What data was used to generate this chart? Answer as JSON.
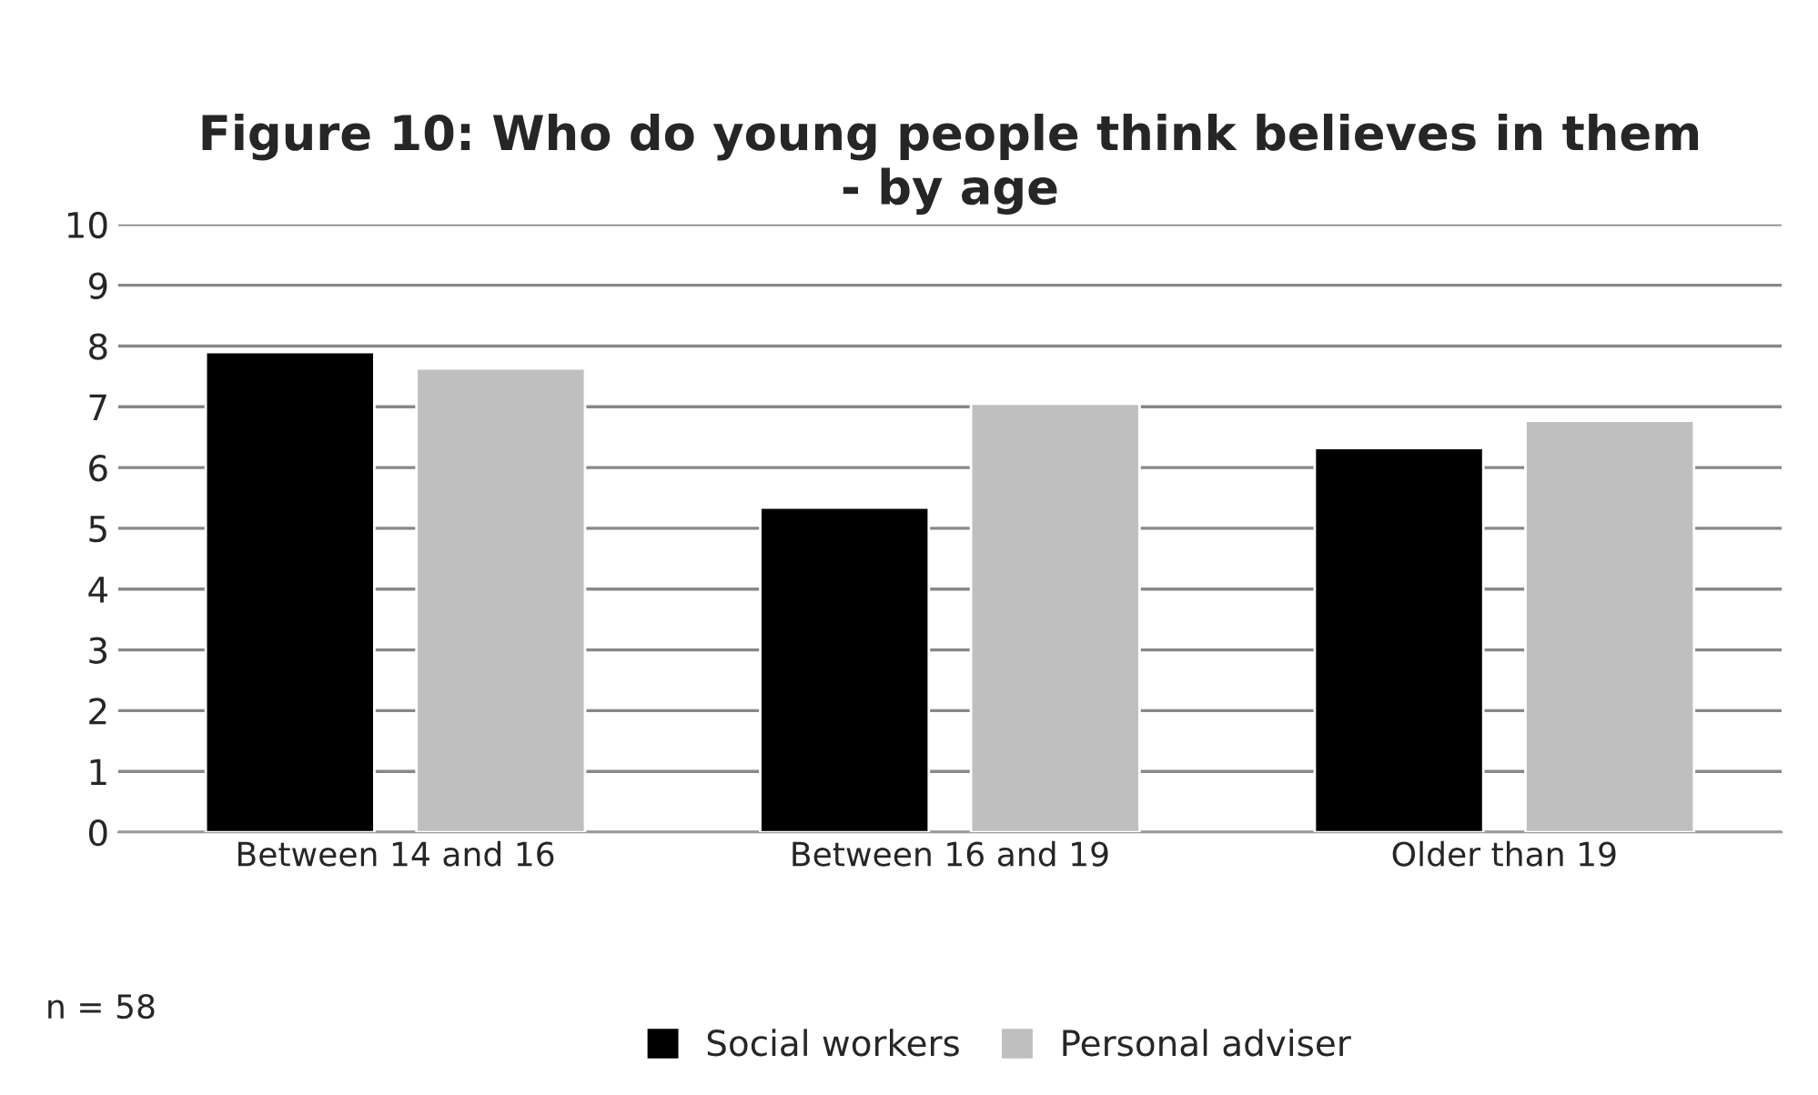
{
  "chart_data": {
    "type": "bar",
    "title": "Figure 10: Who do young people think believes in them\n- by age",
    "categories": [
      "Between 14 and 16",
      "Between 16 and 19",
      "Older than 19"
    ],
    "series": [
      {
        "name": "Social workers",
        "color": "#000000",
        "values": [
          7.9,
          5.34,
          6.32
        ]
      },
      {
        "name": "Personal adviser",
        "color": "#bfbfbf",
        "values": [
          7.63,
          7.05,
          6.77
        ]
      }
    ],
    "ylim": [
      0,
      10
    ],
    "yticks": [
      0,
      1,
      2,
      3,
      4,
      5,
      6,
      7,
      8,
      9,
      10
    ],
    "grid": "y",
    "legend": "bottom",
    "annotations": [
      "n = 58"
    ]
  }
}
